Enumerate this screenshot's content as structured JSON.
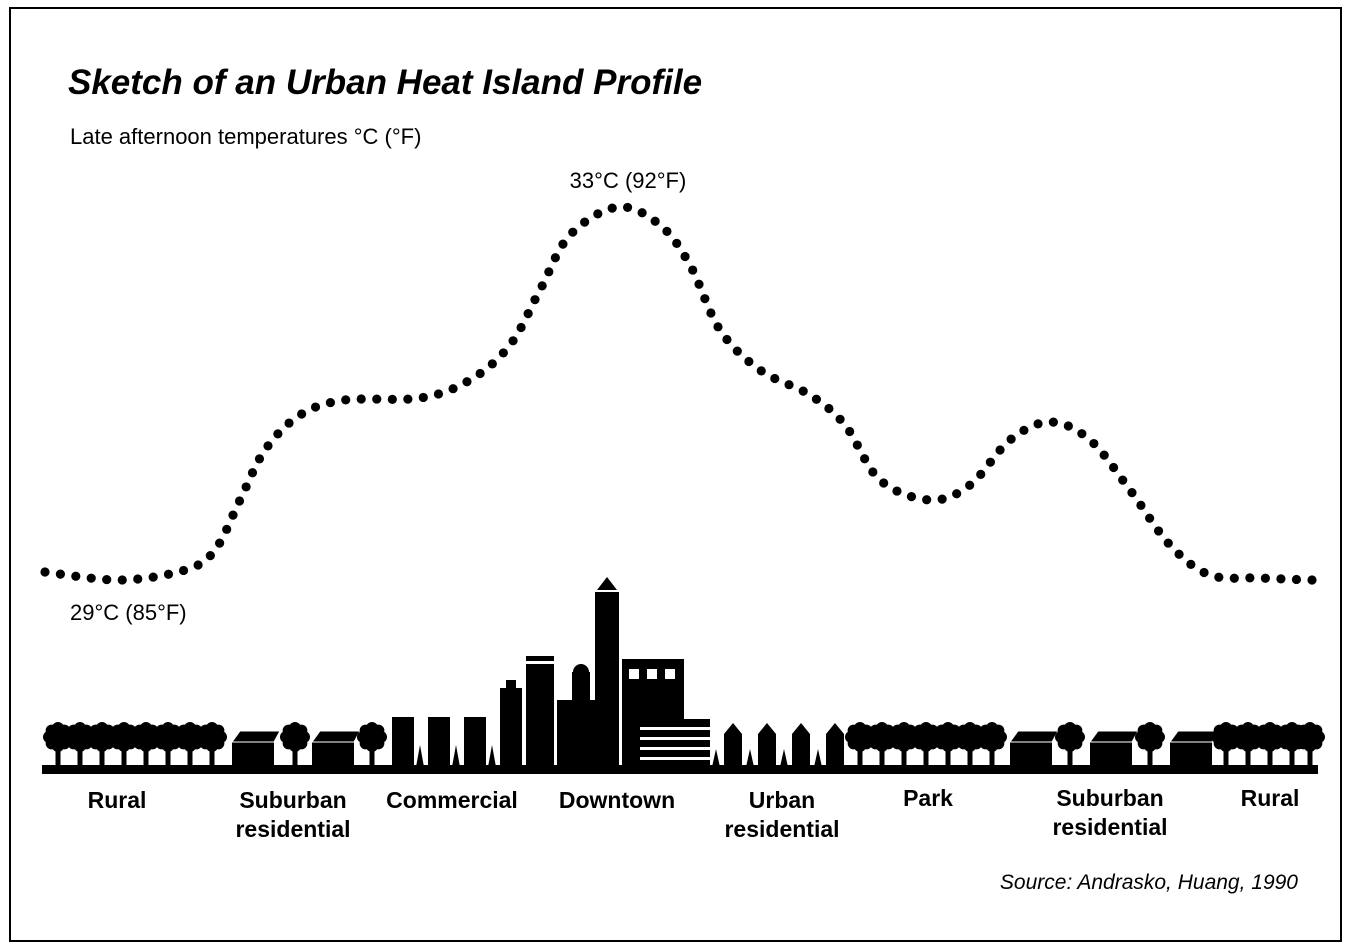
{
  "header": {
    "title": "Sketch of an Urban Heat Island Profile",
    "subtitle": "Late afternoon temperatures °C (°F)"
  },
  "annotations": {
    "peak": "33°C (92°F)",
    "base": "29°C (85°F)"
  },
  "zones": [
    {
      "lines": [
        "Rural"
      ]
    },
    {
      "lines": [
        "Suburban",
        "residential"
      ]
    },
    {
      "lines": [
        "Commercial"
      ]
    },
    {
      "lines": [
        "Downtown"
      ]
    },
    {
      "lines": [
        "Urban",
        "residential"
      ]
    },
    {
      "lines": [
        "Park"
      ]
    },
    {
      "lines": [
        "Suburban",
        "residential"
      ]
    },
    {
      "lines": [
        "Rural"
      ]
    }
  ],
  "source": "Source: Andrasko, Huang, 1990"
}
